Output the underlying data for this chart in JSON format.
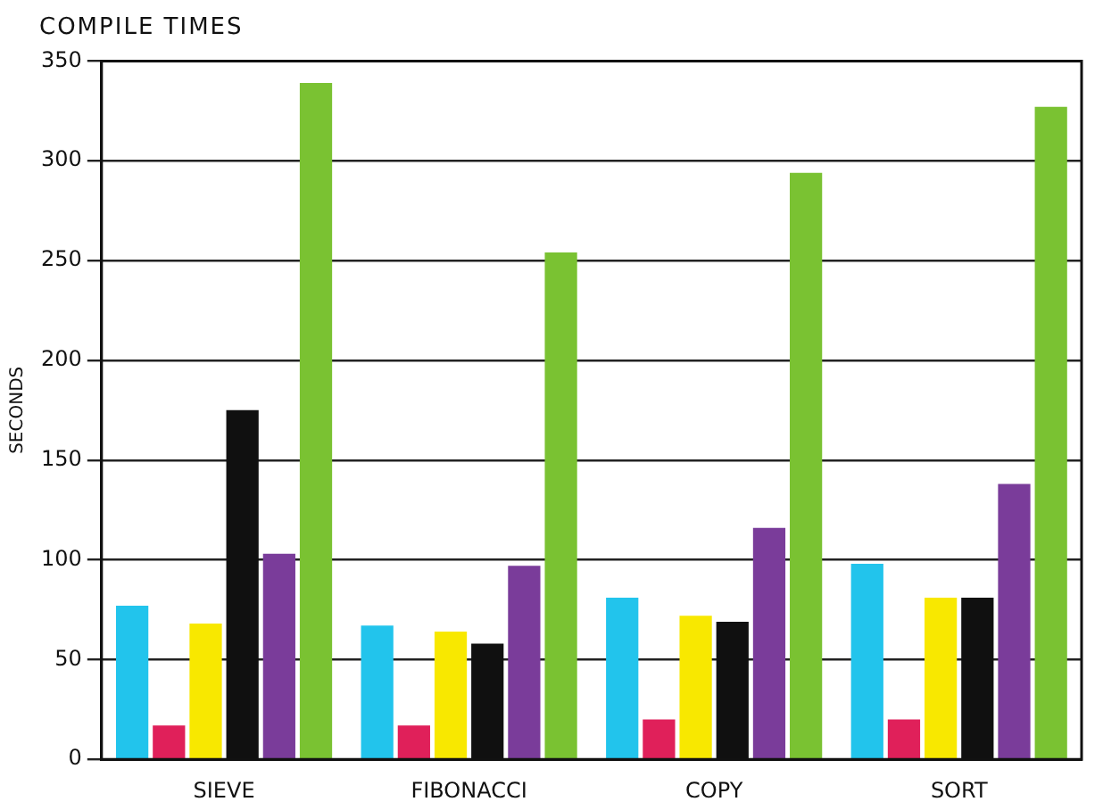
{
  "chart_data": {
    "type": "bar",
    "title": "COMPILE TIMES",
    "ylabel": "SECONDS",
    "categories": [
      "SIEVE",
      "FIBONACCI",
      "COPY",
      "SORT"
    ],
    "series": [
      {
        "color": "#22c4ec",
        "values": [
          77,
          67,
          81,
          98
        ]
      },
      {
        "color": "#e0205a",
        "values": [
          17,
          17,
          20,
          20
        ]
      },
      {
        "color": "#f8e800",
        "values": [
          68,
          64,
          72,
          81
        ]
      },
      {
        "color": "#101010",
        "values": [
          175,
          58,
          69,
          81
        ]
      },
      {
        "color": "#7a3c9a",
        "values": [
          103,
          97,
          116,
          138
        ]
      },
      {
        "color": "#7ac232",
        "values": [
          339,
          254,
          294,
          327
        ]
      }
    ],
    "ylim": [
      0,
      350
    ],
    "yticks": [
      0,
      50,
      100,
      150,
      200,
      250,
      300,
      350
    ],
    "grid": "y",
    "legend": false
  }
}
